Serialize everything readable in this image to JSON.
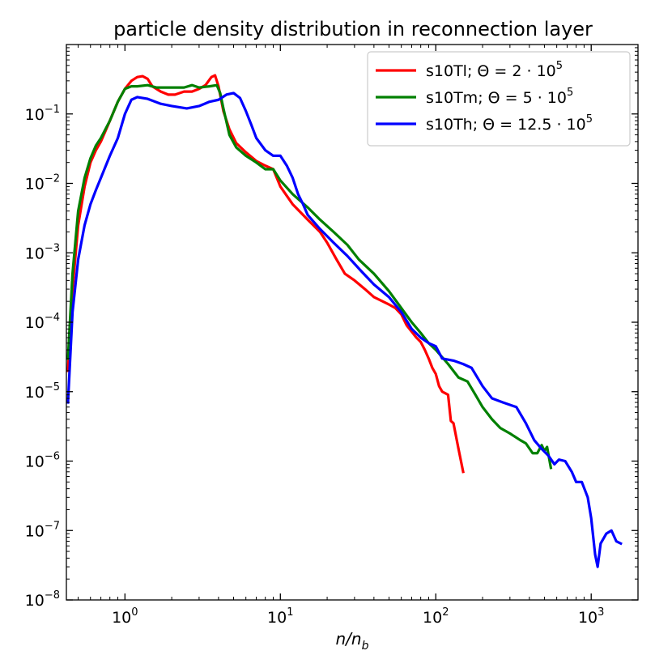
{
  "chart_data": {
    "type": "line",
    "title": "particle density distribution in reconnection layer",
    "xlabel": "n/n_b",
    "xlabel_display": {
      "main": "n/n",
      "sub": "b"
    },
    "ylabel": "",
    "xscale": "log",
    "yscale": "log",
    "xlim": [
      0.42,
      2000
    ],
    "ylim": [
      1e-08,
      1
    ],
    "x_ticks": [
      {
        "value": 1,
        "base": "10",
        "exp": "0"
      },
      {
        "value": 10,
        "base": "10",
        "exp": "1"
      },
      {
        "value": 100,
        "base": "10",
        "exp": "2"
      },
      {
        "value": 1000,
        "base": "10",
        "exp": "3"
      }
    ],
    "y_ticks": [
      {
        "value": 1e-08,
        "base": "10",
        "exp": "−8"
      },
      {
        "value": 1e-07,
        "base": "10",
        "exp": "−7"
      },
      {
        "value": 1e-06,
        "base": "10",
        "exp": "−6"
      },
      {
        "value": 1e-05,
        "base": "10",
        "exp": "−5"
      },
      {
        "value": 0.0001,
        "base": "10",
        "exp": "−4"
      },
      {
        "value": 0.001,
        "base": "10",
        "exp": "−3"
      },
      {
        "value": 0.01,
        "base": "10",
        "exp": "−2"
      },
      {
        "value": 0.1,
        "base": "10",
        "exp": "−1"
      }
    ],
    "grid": false,
    "legend_position": "top-right",
    "series": [
      {
        "name": "s10Tl; Θ = 2·10^5",
        "legend": {
          "prefix": "s10Tl; Θ = 2 · 10",
          "exp": "5"
        },
        "color": "#ff0000",
        "points": [
          [
            0.43,
            2e-05
          ],
          [
            0.46,
            0.0003
          ],
          [
            0.5,
            0.0025
          ],
          [
            0.55,
            0.009
          ],
          [
            0.6,
            0.02
          ],
          [
            0.65,
            0.03
          ],
          [
            0.7,
            0.04
          ],
          [
            0.8,
            0.08
          ],
          [
            0.9,
            0.15
          ],
          [
            1.0,
            0.23
          ],
          [
            1.1,
            0.3
          ],
          [
            1.2,
            0.34
          ],
          [
            1.3,
            0.35
          ],
          [
            1.4,
            0.32
          ],
          [
            1.5,
            0.25
          ],
          [
            1.7,
            0.21
          ],
          [
            1.9,
            0.19
          ],
          [
            2.1,
            0.19
          ],
          [
            2.4,
            0.21
          ],
          [
            2.7,
            0.21
          ],
          [
            3.0,
            0.23
          ],
          [
            3.3,
            0.26
          ],
          [
            3.6,
            0.34
          ],
          [
            3.8,
            0.36
          ],
          [
            4.0,
            0.25
          ],
          [
            4.3,
            0.11
          ],
          [
            4.7,
            0.06
          ],
          [
            5.2,
            0.038
          ],
          [
            6,
            0.028
          ],
          [
            7,
            0.021
          ],
          [
            8,
            0.018
          ],
          [
            9,
            0.016
          ],
          [
            10,
            0.009
          ],
          [
            12,
            0.005
          ],
          [
            15,
            0.003
          ],
          [
            18,
            0.002
          ],
          [
            20,
            0.0014
          ],
          [
            23,
            0.0008
          ],
          [
            26,
            0.0005
          ],
          [
            30,
            0.0004
          ],
          [
            35,
            0.0003
          ],
          [
            40,
            0.00023
          ],
          [
            50,
            0.00018
          ],
          [
            55,
            0.00016
          ],
          [
            60,
            0.00013
          ],
          [
            65,
            9e-05
          ],
          [
            75,
            6e-05
          ],
          [
            80,
            5.2e-05
          ],
          [
            85,
            4e-05
          ],
          [
            90,
            3e-05
          ],
          [
            95,
            2.2e-05
          ],
          [
            100,
            1.8e-05
          ],
          [
            105,
            1.2e-05
          ],
          [
            110,
            1e-05
          ],
          [
            115,
            9.5e-06
          ],
          [
            120,
            9e-06
          ],
          [
            125,
            3.8e-06
          ],
          [
            130,
            3.5e-06
          ],
          [
            140,
            1.5e-06
          ],
          [
            150,
            7e-07
          ]
        ]
      },
      {
        "name": "s10Tm; Θ = 5·10^5",
        "legend": {
          "prefix": "s10Tm; Θ = 5 · 10",
          "exp": "5"
        },
        "color": "#008000",
        "points": [
          [
            0.43,
            3e-05
          ],
          [
            0.46,
            0.0005
          ],
          [
            0.5,
            0.004
          ],
          [
            0.55,
            0.012
          ],
          [
            0.6,
            0.023
          ],
          [
            0.65,
            0.035
          ],
          [
            0.7,
            0.045
          ],
          [
            0.8,
            0.08
          ],
          [
            0.9,
            0.15
          ],
          [
            1.0,
            0.23
          ],
          [
            1.1,
            0.25
          ],
          [
            1.2,
            0.25
          ],
          [
            1.4,
            0.26
          ],
          [
            1.6,
            0.24
          ],
          [
            2.0,
            0.24
          ],
          [
            2.4,
            0.24
          ],
          [
            2.7,
            0.26
          ],
          [
            3.0,
            0.24
          ],
          [
            3.5,
            0.25
          ],
          [
            3.9,
            0.26
          ],
          [
            4.1,
            0.2
          ],
          [
            4.3,
            0.12
          ],
          [
            4.7,
            0.05
          ],
          [
            5.2,
            0.033
          ],
          [
            6,
            0.025
          ],
          [
            7,
            0.02
          ],
          [
            8,
            0.016
          ],
          [
            9,
            0.016
          ],
          [
            10,
            0.011
          ],
          [
            12,
            0.007
          ],
          [
            15,
            0.0045
          ],
          [
            18,
            0.003
          ],
          [
            22,
            0.002
          ],
          [
            27,
            0.0013
          ],
          [
            32,
            0.0008
          ],
          [
            40,
            0.0005
          ],
          [
            50,
            0.00028
          ],
          [
            60,
            0.00016
          ],
          [
            70,
            0.0001
          ],
          [
            80,
            7e-05
          ],
          [
            90,
            5e-05
          ],
          [
            100,
            4e-05
          ],
          [
            120,
            2.5e-05
          ],
          [
            140,
            1.6e-05
          ],
          [
            160,
            1.4e-05
          ],
          [
            180,
            9e-06
          ],
          [
            200,
            6e-06
          ],
          [
            230,
            4e-06
          ],
          [
            260,
            3e-06
          ],
          [
            300,
            2.5e-06
          ],
          [
            350,
            2e-06
          ],
          [
            380,
            1.8e-06
          ],
          [
            420,
            1.3e-06
          ],
          [
            450,
            1.3e-06
          ],
          [
            480,
            1.7e-06
          ],
          [
            500,
            1.4e-06
          ],
          [
            520,
            1.6e-06
          ],
          [
            550,
            8e-07
          ]
        ]
      },
      {
        "name": "s10Th; Θ = 12.5·10^5",
        "legend": {
          "prefix": "s10Th; Θ = 12.5 · 10",
          "exp": "5"
        },
        "color": "#0000ff",
        "points": [
          [
            0.43,
            7e-06
          ],
          [
            0.46,
            0.00014
          ],
          [
            0.5,
            0.0008
          ],
          [
            0.55,
            0.0025
          ],
          [
            0.6,
            0.005
          ],
          [
            0.65,
            0.008
          ],
          [
            0.7,
            0.012
          ],
          [
            0.8,
            0.025
          ],
          [
            0.9,
            0.045
          ],
          [
            1.0,
            0.1
          ],
          [
            1.1,
            0.16
          ],
          [
            1.2,
            0.175
          ],
          [
            1.4,
            0.165
          ],
          [
            1.7,
            0.14
          ],
          [
            2.0,
            0.13
          ],
          [
            2.5,
            0.12
          ],
          [
            3.0,
            0.13
          ],
          [
            3.5,
            0.15
          ],
          [
            4.0,
            0.16
          ],
          [
            4.5,
            0.19
          ],
          [
            5.0,
            0.2
          ],
          [
            5.5,
            0.17
          ],
          [
            6.0,
            0.11
          ],
          [
            6.5,
            0.07
          ],
          [
            7,
            0.045
          ],
          [
            8,
            0.03
          ],
          [
            9,
            0.025
          ],
          [
            10,
            0.025
          ],
          [
            11,
            0.018
          ],
          [
            12,
            0.012
          ],
          [
            13,
            0.007
          ],
          [
            14,
            0.005
          ],
          [
            15,
            0.0035
          ],
          [
            18,
            0.0022
          ],
          [
            22,
            0.0014
          ],
          [
            27,
            0.0009
          ],
          [
            33,
            0.00055
          ],
          [
            40,
            0.00035
          ],
          [
            50,
            0.00023
          ],
          [
            60,
            0.00014
          ],
          [
            70,
            8e-05
          ],
          [
            80,
            6e-05
          ],
          [
            90,
            5e-05
          ],
          [
            100,
            4.5e-05
          ],
          [
            110,
            3e-05
          ],
          [
            130,
            2.8e-05
          ],
          [
            150,
            2.5e-05
          ],
          [
            170,
            2.2e-05
          ],
          [
            200,
            1.2e-05
          ],
          [
            230,
            8e-06
          ],
          [
            270,
            7e-06
          ],
          [
            330,
            6e-06
          ],
          [
            380,
            3.5e-06
          ],
          [
            430,
            2e-06
          ],
          [
            480,
            1.5e-06
          ],
          [
            530,
            1.2e-06
          ],
          [
            580,
            9e-07
          ],
          [
            620,
            1.05e-06
          ],
          [
            680,
            1e-06
          ],
          [
            750,
            7e-07
          ],
          [
            800,
            5e-07
          ],
          [
            870,
            5e-07
          ],
          [
            950,
            3e-07
          ],
          [
            1000,
            1.5e-07
          ],
          [
            1060,
            4.5e-08
          ],
          [
            1100,
            3e-08
          ],
          [
            1150,
            6.5e-08
          ],
          [
            1250,
            9e-08
          ],
          [
            1350,
            1e-07
          ],
          [
            1450,
            7e-08
          ],
          [
            1550,
            6.5e-08
          ]
        ]
      }
    ]
  }
}
